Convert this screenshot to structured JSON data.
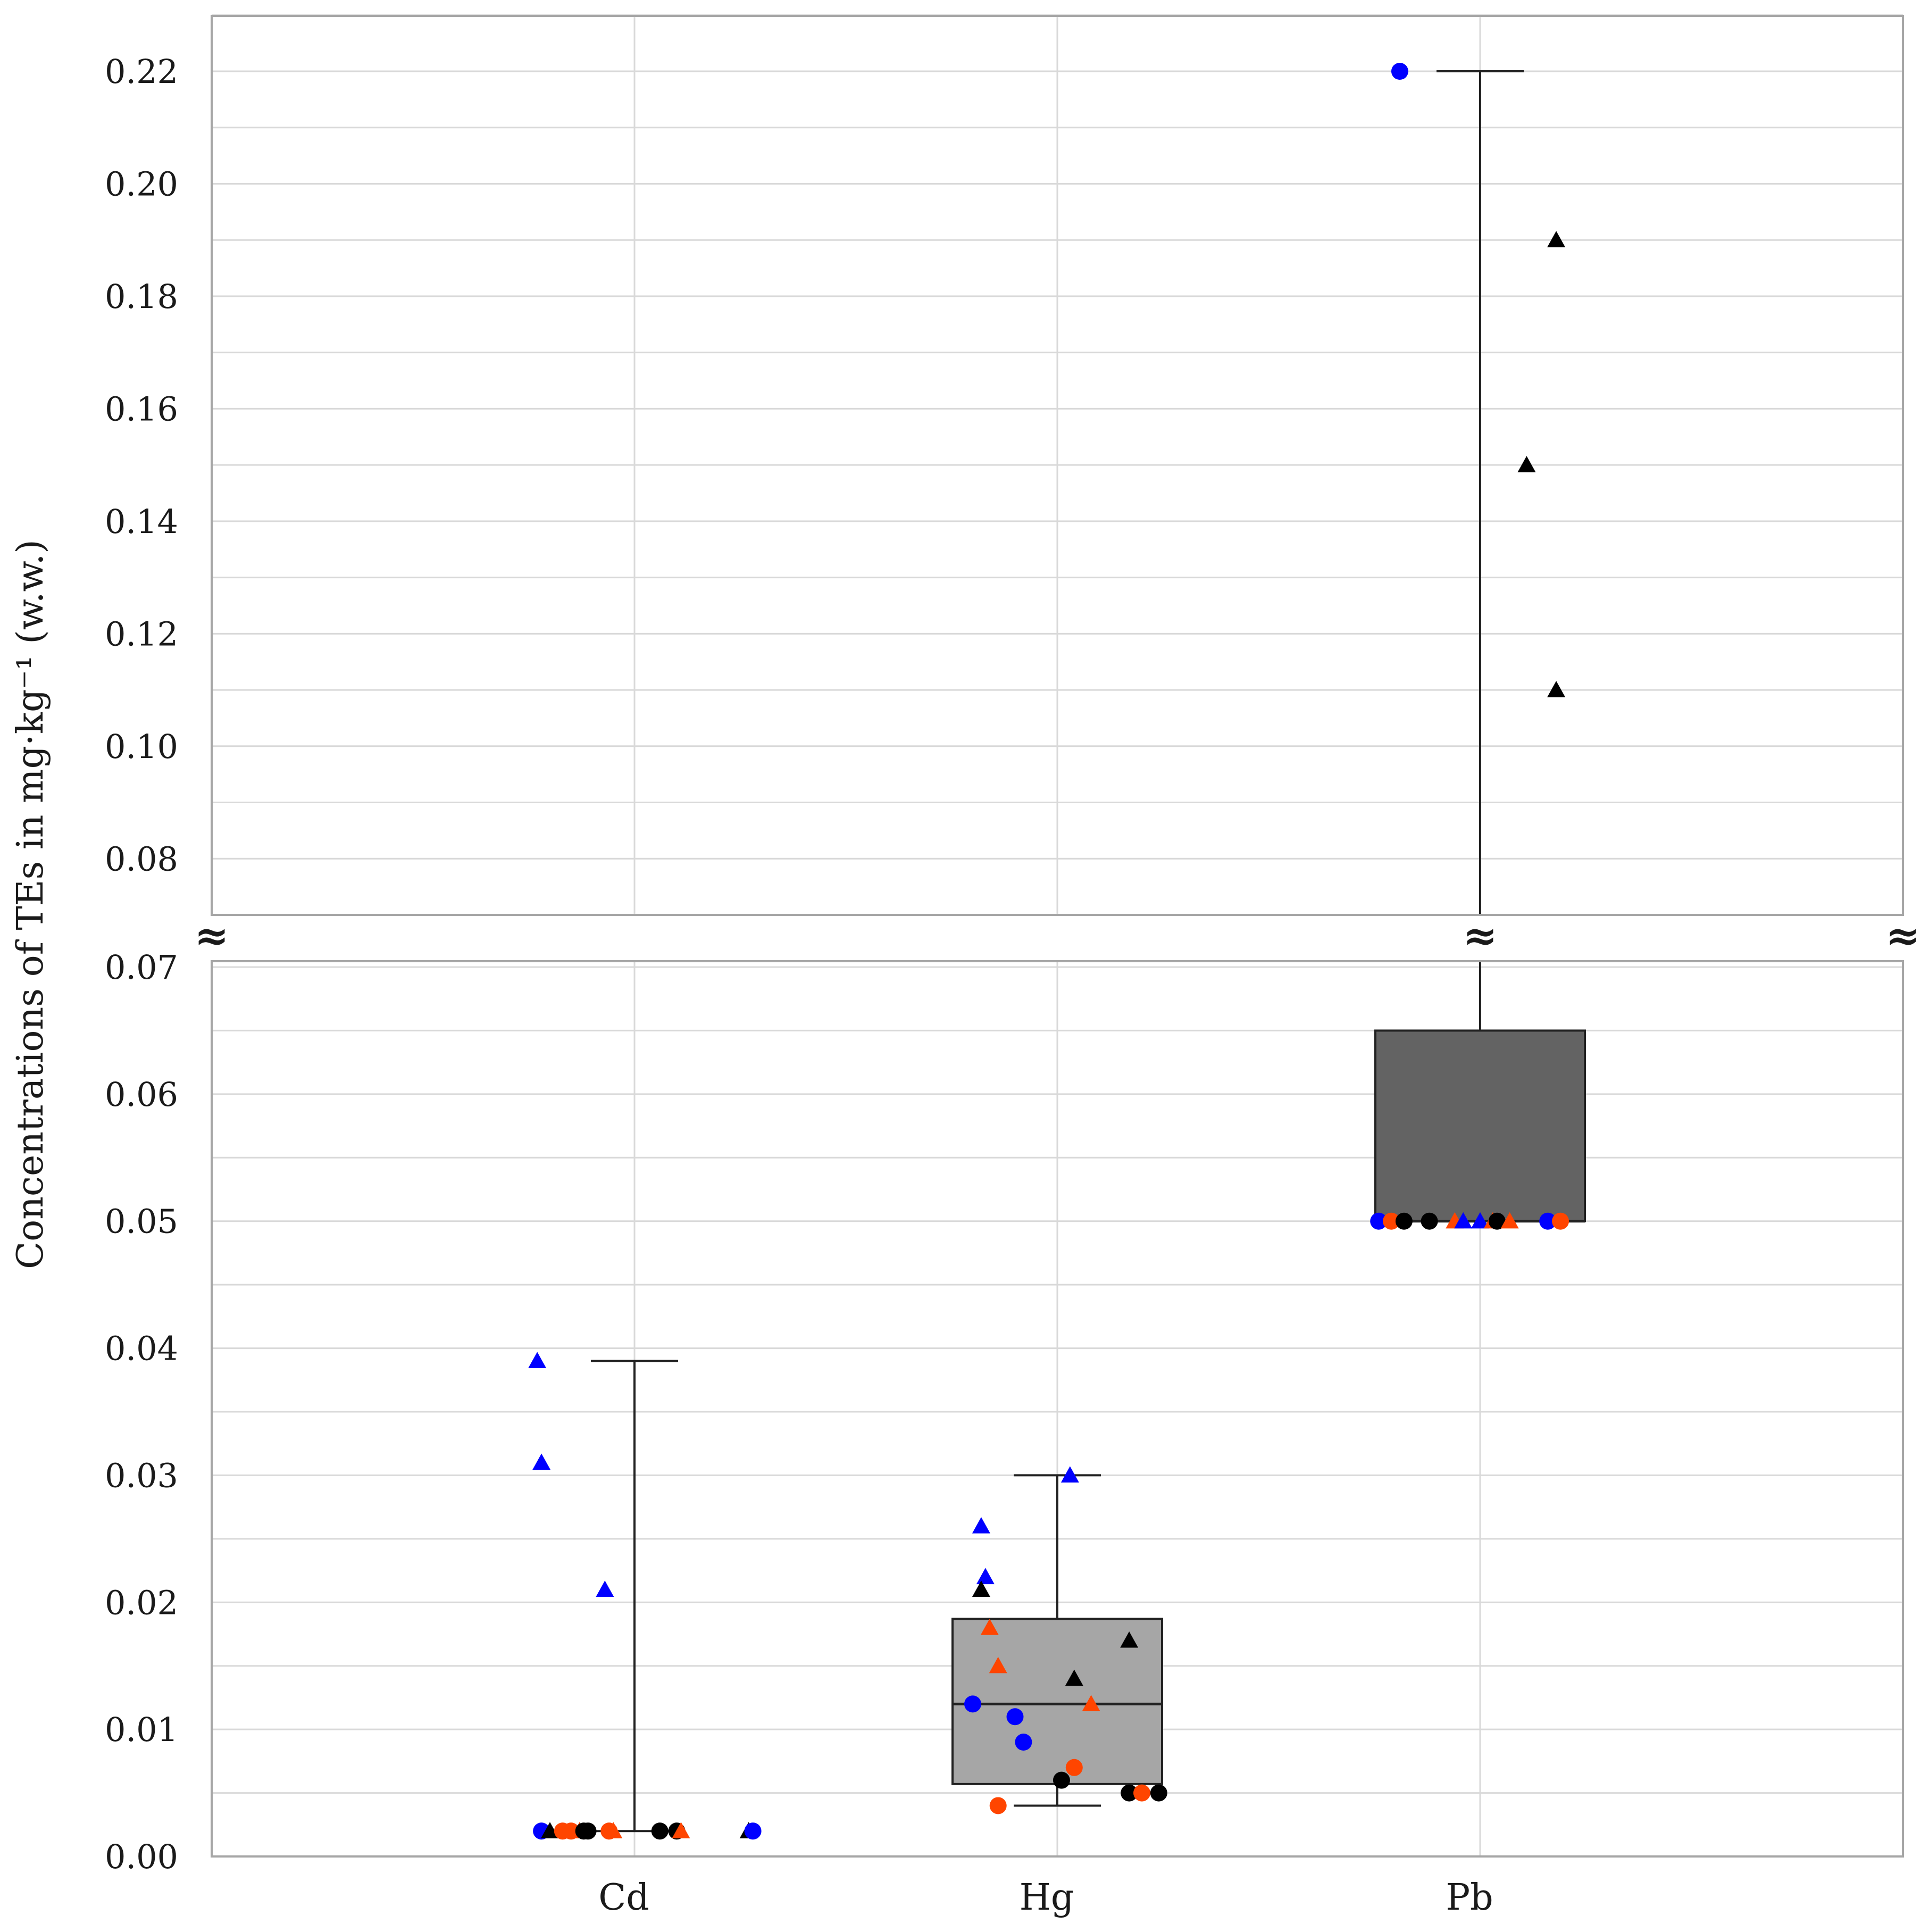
{
  "chart_data": {
    "type": "box",
    "ylabel": "Concentrations of TEs in mg·kg⁻¹ (w.w.)",
    "categories": [
      "Cd",
      "Hg",
      "Pb"
    ],
    "axis_break": {
      "symbol": "≈",
      "lower_ylim": [
        0,
        0.07
      ],
      "upper_ylim": [
        0.07,
        0.23
      ]
    },
    "lower_ticks": [
      "0.00",
      "0.01",
      "0.02",
      "0.03",
      "0.04",
      "0.05",
      "0.06",
      "0.07"
    ],
    "upper_ticks": [
      "0.08",
      "0.10",
      "0.12",
      "0.14",
      "0.16",
      "0.18",
      "0.20",
      "0.22"
    ],
    "grid": true,
    "colors": {
      "blue": "#0000ff",
      "orange": "#ff4500",
      "black": "#000000",
      "hg_box": "#a6a6a6",
      "pb_box": "#636363",
      "grid": "#d9d9d9",
      "frame": "#a6a6a6"
    },
    "boxes": [
      {
        "category": "Cd",
        "min": 0.002,
        "q1": 0.002,
        "median": 0.002,
        "q3": 0.002,
        "max": 0.039
      },
      {
        "category": "Hg",
        "min": 0.004,
        "q1": 0.0057,
        "median": 0.012,
        "q3": 0.0187,
        "max": 0.03
      },
      {
        "category": "Pb",
        "min": 0.05,
        "q1": 0.05,
        "median": 0.05,
        "q3": 0.065,
        "max": 0.22
      }
    ],
    "points": [
      {
        "category": "Cd",
        "offset": -0.22,
        "y": 0.002,
        "marker": "circle",
        "color": "blue"
      },
      {
        "category": "Cd",
        "offset": -0.2,
        "y": 0.002,
        "marker": "triangle",
        "color": "black"
      },
      {
        "category": "Cd",
        "offset": -0.17,
        "y": 0.002,
        "marker": "circle",
        "color": "orange"
      },
      {
        "category": "Cd",
        "offset": -0.15,
        "y": 0.002,
        "marker": "circle",
        "color": "orange"
      },
      {
        "category": "Cd",
        "offset": -0.13,
        "y": 0.002,
        "marker": "triangle",
        "color": "orange"
      },
      {
        "category": "Cd",
        "offset": -0.12,
        "y": 0.002,
        "marker": "circle",
        "color": "black"
      },
      {
        "category": "Cd",
        "offset": -0.11,
        "y": 0.002,
        "marker": "circle",
        "color": "black"
      },
      {
        "category": "Cd",
        "offset": -0.06,
        "y": 0.002,
        "marker": "circle",
        "color": "orange"
      },
      {
        "category": "Cd",
        "offset": -0.05,
        "y": 0.002,
        "marker": "triangle",
        "color": "orange"
      },
      {
        "category": "Cd",
        "offset": 0.06,
        "y": 0.002,
        "marker": "circle",
        "color": "black"
      },
      {
        "category": "Cd",
        "offset": 0.1,
        "y": 0.002,
        "marker": "circle",
        "color": "black"
      },
      {
        "category": "Cd",
        "offset": 0.11,
        "y": 0.002,
        "marker": "triangle",
        "color": "orange"
      },
      {
        "category": "Cd",
        "offset": 0.27,
        "y": 0.002,
        "marker": "triangle",
        "color": "black"
      },
      {
        "category": "Cd",
        "offset": 0.28,
        "y": 0.002,
        "marker": "circle",
        "color": "blue"
      },
      {
        "category": "Cd",
        "offset": -0.23,
        "y": 0.039,
        "marker": "triangle",
        "color": "blue"
      },
      {
        "category": "Cd",
        "offset": -0.22,
        "y": 0.031,
        "marker": "triangle",
        "color": "blue"
      },
      {
        "category": "Cd",
        "offset": -0.07,
        "y": 0.021,
        "marker": "triangle",
        "color": "blue"
      },
      {
        "category": "Hg",
        "offset": 0.03,
        "y": 0.03,
        "marker": "triangle",
        "color": "blue"
      },
      {
        "category": "Hg",
        "offset": -0.18,
        "y": 0.026,
        "marker": "triangle",
        "color": "blue"
      },
      {
        "category": "Hg",
        "offset": -0.17,
        "y": 0.022,
        "marker": "triangle",
        "color": "blue"
      },
      {
        "category": "Hg",
        "offset": -0.18,
        "y": 0.021,
        "marker": "triangle",
        "color": "black"
      },
      {
        "category": "Hg",
        "offset": -0.16,
        "y": 0.018,
        "marker": "triangle",
        "color": "orange"
      },
      {
        "category": "Hg",
        "offset": 0.17,
        "y": 0.017,
        "marker": "triangle",
        "color": "black"
      },
      {
        "category": "Hg",
        "offset": -0.14,
        "y": 0.015,
        "marker": "triangle",
        "color": "orange"
      },
      {
        "category": "Hg",
        "offset": 0.04,
        "y": 0.014,
        "marker": "triangle",
        "color": "black"
      },
      {
        "category": "Hg",
        "offset": -0.2,
        "y": 0.012,
        "marker": "circle",
        "color": "blue"
      },
      {
        "category": "Hg",
        "offset": 0.08,
        "y": 0.012,
        "marker": "triangle",
        "color": "orange"
      },
      {
        "category": "Hg",
        "offset": -0.1,
        "y": 0.011,
        "marker": "circle",
        "color": "blue"
      },
      {
        "category": "Hg",
        "offset": -0.08,
        "y": 0.009,
        "marker": "circle",
        "color": "blue"
      },
      {
        "category": "Hg",
        "offset": 0.04,
        "y": 0.007,
        "marker": "circle",
        "color": "orange"
      },
      {
        "category": "Hg",
        "offset": 0.01,
        "y": 0.006,
        "marker": "circle",
        "color": "black"
      },
      {
        "category": "Hg",
        "offset": 0.17,
        "y": 0.005,
        "marker": "circle",
        "color": "black"
      },
      {
        "category": "Hg",
        "offset": 0.2,
        "y": 0.005,
        "marker": "circle",
        "color": "orange"
      },
      {
        "category": "Hg",
        "offset": 0.24,
        "y": 0.005,
        "marker": "circle",
        "color": "black"
      },
      {
        "category": "Hg",
        "offset": -0.14,
        "y": 0.004,
        "marker": "circle",
        "color": "orange"
      },
      {
        "category": "Pb",
        "offset": -0.19,
        "y": 0.22,
        "marker": "circle",
        "color": "blue"
      },
      {
        "category": "Pb",
        "offset": 0.18,
        "y": 0.19,
        "marker": "triangle",
        "color": "black"
      },
      {
        "category": "Pb",
        "offset": 0.11,
        "y": 0.15,
        "marker": "triangle",
        "color": "black"
      },
      {
        "category": "Pb",
        "offset": 0.18,
        "y": 0.11,
        "marker": "triangle",
        "color": "black"
      },
      {
        "category": "Pb",
        "offset": -0.24,
        "y": 0.05,
        "marker": "circle",
        "color": "blue"
      },
      {
        "category": "Pb",
        "offset": -0.21,
        "y": 0.05,
        "marker": "circle",
        "color": "orange"
      },
      {
        "category": "Pb",
        "offset": -0.18,
        "y": 0.05,
        "marker": "circle",
        "color": "black"
      },
      {
        "category": "Pb",
        "offset": -0.12,
        "y": 0.05,
        "marker": "circle",
        "color": "black"
      },
      {
        "category": "Pb",
        "offset": -0.06,
        "y": 0.05,
        "marker": "triangle",
        "color": "orange"
      },
      {
        "category": "Pb",
        "offset": -0.04,
        "y": 0.05,
        "marker": "triangle",
        "color": "blue"
      },
      {
        "category": "Pb",
        "offset": 0.0,
        "y": 0.05,
        "marker": "triangle",
        "color": "blue"
      },
      {
        "category": "Pb",
        "offset": 0.03,
        "y": 0.05,
        "marker": "triangle",
        "color": "orange"
      },
      {
        "category": "Pb",
        "offset": 0.04,
        "y": 0.05,
        "marker": "circle",
        "color": "black"
      },
      {
        "category": "Pb",
        "offset": 0.07,
        "y": 0.05,
        "marker": "triangle",
        "color": "orange"
      },
      {
        "category": "Pb",
        "offset": 0.16,
        "y": 0.05,
        "marker": "circle",
        "color": "blue"
      },
      {
        "category": "Pb",
        "offset": 0.19,
        "y": 0.05,
        "marker": "circle",
        "color": "orange"
      }
    ]
  }
}
